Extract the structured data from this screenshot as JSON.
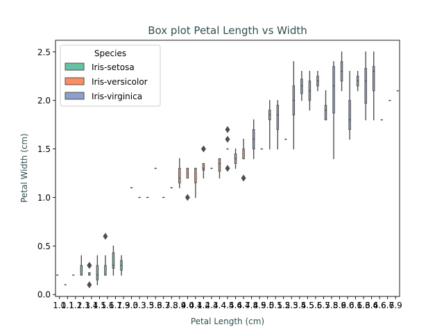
{
  "chart_data": {
    "type": "box",
    "title": "Box plot Petal Length vs Width",
    "xlabel": "Petal Length (cm)",
    "ylabel": "Petal Width (cm)",
    "ylim": [
      -0.02,
      2.62
    ],
    "yticks": [
      0.0,
      0.5,
      1.0,
      1.5,
      2.0,
      2.5
    ],
    "ytick_labels": [
      "0.0",
      "0.5",
      "1.0",
      "1.5",
      "2.0",
      "2.5"
    ],
    "categories": [
      "1.0",
      "1.1",
      "1.2",
      "1.3",
      "1.4",
      "1.5",
      "1.6",
      "1.7",
      "1.9",
      "3.0",
      "3.3",
      "3.5",
      "3.6",
      "3.7",
      "3.8",
      "3.9",
      "4.0",
      "4.1",
      "4.2",
      "4.3",
      "4.4",
      "4.5",
      "4.6",
      "4.7",
      "4.8",
      "4.9",
      "5.0",
      "5.1",
      "5.2",
      "5.3",
      "5.4",
      "5.5",
      "5.6",
      "5.7",
      "5.8",
      "5.9",
      "6.0",
      "6.1",
      "6.3",
      "6.4",
      "6.6",
      "6.7",
      "6.9"
    ],
    "grid": false,
    "legend": {
      "title": "Species",
      "position": "top-left"
    },
    "series": [
      {
        "name": "Iris-setosa",
        "color": "#66c2a5",
        "boxes": [
          {
            "category": "1.0",
            "min": 0.2,
            "q1": 0.2,
            "median": 0.2,
            "q3": 0.2,
            "max": 0.2,
            "outliers": []
          },
          {
            "category": "1.1",
            "min": 0.1,
            "q1": 0.1,
            "median": 0.1,
            "q3": 0.1,
            "max": 0.1,
            "outliers": []
          },
          {
            "category": "1.2",
            "min": 0.2,
            "q1": 0.2,
            "median": 0.2,
            "q3": 0.2,
            "max": 0.2,
            "outliers": []
          },
          {
            "category": "1.3",
            "min": 0.2,
            "q1": 0.2,
            "median": 0.2,
            "q3": 0.3,
            "max": 0.4,
            "outliers": []
          },
          {
            "category": "1.4",
            "min": 0.2,
            "q1": 0.2,
            "median": 0.2,
            "q3": 0.225,
            "max": 0.225,
            "outliers": [
              0.3,
              0.3,
              0.1
            ]
          },
          {
            "category": "1.5",
            "min": 0.1,
            "q1": 0.15,
            "median": 0.2,
            "q3": 0.3,
            "max": 0.4,
            "outliers": []
          },
          {
            "category": "1.6",
            "min": 0.2,
            "q1": 0.2,
            "median": 0.2,
            "q3": 0.3,
            "max": 0.4,
            "outliers": [
              0.6
            ]
          },
          {
            "category": "1.7",
            "min": 0.2,
            "q1": 0.27,
            "median": 0.3,
            "q3": 0.43,
            "max": 0.5,
            "outliers": []
          },
          {
            "category": "1.9",
            "min": 0.2,
            "q1": 0.25,
            "median": 0.3,
            "q3": 0.35,
            "max": 0.4,
            "outliers": []
          }
        ]
      },
      {
        "name": "Iris-versicolor",
        "color": "#fc8d62",
        "boxes": [
          {
            "category": "3.0",
            "min": 1.1,
            "q1": 1.1,
            "median": 1.1,
            "q3": 1.1,
            "max": 1.1,
            "outliers": []
          },
          {
            "category": "3.3",
            "min": 1.0,
            "q1": 1.0,
            "median": 1.0,
            "q3": 1.0,
            "max": 1.0,
            "outliers": []
          },
          {
            "category": "3.5",
            "min": 1.0,
            "q1": 1.0,
            "median": 1.0,
            "q3": 1.0,
            "max": 1.0,
            "outliers": []
          },
          {
            "category": "3.6",
            "min": 1.3,
            "q1": 1.3,
            "median": 1.3,
            "q3": 1.3,
            "max": 1.3,
            "outliers": []
          },
          {
            "category": "3.7",
            "min": 1.0,
            "q1": 1.0,
            "median": 1.0,
            "q3": 1.0,
            "max": 1.0,
            "outliers": []
          },
          {
            "category": "3.8",
            "min": 1.1,
            "q1": 1.1,
            "median": 1.1,
            "q3": 1.1,
            "max": 1.1,
            "outliers": []
          },
          {
            "category": "3.9",
            "min": 1.1,
            "q1": 1.15,
            "median": 1.2,
            "q3": 1.3,
            "max": 1.4,
            "outliers": []
          },
          {
            "category": "4.0",
            "min": 1.2,
            "q1": 1.2,
            "median": 1.3,
            "q3": 1.3,
            "max": 1.3,
            "outliers": [
              1.0
            ]
          },
          {
            "category": "4.1",
            "min": 1.0,
            "q1": 1.15,
            "median": 1.3,
            "q3": 1.3,
            "max": 1.3,
            "outliers": []
          },
          {
            "category": "4.2",
            "min": 1.2,
            "q1": 1.28,
            "median": 1.3,
            "q3": 1.35,
            "max": 1.35,
            "outliers": [
              1.5
            ]
          },
          {
            "category": "4.3",
            "min": 1.3,
            "q1": 1.3,
            "median": 1.3,
            "q3": 1.3,
            "max": 1.3,
            "outliers": []
          },
          {
            "category": "4.4",
            "min": 1.2,
            "q1": 1.27,
            "median": 1.35,
            "q3": 1.4,
            "max": 1.4,
            "outliers": []
          },
          {
            "category": "4.5",
            "min": 1.5,
            "q1": 1.5,
            "median": 1.5,
            "q3": 1.5,
            "max": 1.5,
            "outliers": [
              1.7,
              1.6,
              1.3
            ]
          },
          {
            "category": "4.6",
            "min": 1.3,
            "q1": 1.35,
            "median": 1.4,
            "q3": 1.45,
            "max": 1.5,
            "outliers": []
          },
          {
            "category": "4.7",
            "min": 1.4,
            "q1": 1.4,
            "median": 1.4,
            "q3": 1.5,
            "max": 1.6,
            "outliers": [
              1.2
            ]
          }
        ]
      },
      {
        "name": "Iris-virginica",
        "color": "#8da0cb",
        "boxes": [
          {
            "category": "4.8",
            "min": 1.4,
            "q1": 1.5,
            "median": 1.6,
            "q3": 1.7,
            "max": 1.8,
            "outliers": []
          },
          {
            "category": "4.9",
            "min": 1.5,
            "q1": 1.5,
            "median": 1.5,
            "q3": 1.5,
            "max": 1.5,
            "outliers": []
          },
          {
            "category": "5.0",
            "min": 1.5,
            "q1": 1.8,
            "median": 1.85,
            "q3": 1.9,
            "max": 2.0,
            "outliers": []
          },
          {
            "category": "5.1",
            "min": 1.5,
            "q1": 1.7,
            "median": 1.85,
            "q3": 1.95,
            "max": 2.0,
            "outliers": []
          },
          {
            "category": "5.2",
            "min": 1.6,
            "q1": 1.6,
            "median": 1.6,
            "q3": 1.6,
            "max": 1.6,
            "outliers": []
          },
          {
            "category": "5.3",
            "min": 1.5,
            "q1": 1.85,
            "median": 2.0,
            "q3": 2.15,
            "max": 2.4,
            "outliers": []
          },
          {
            "category": "5.4",
            "min": 2.0,
            "q1": 2.07,
            "median": 2.15,
            "q3": 2.22,
            "max": 2.3,
            "outliers": []
          },
          {
            "category": "5.5",
            "min": 1.9,
            "q1": 2.0,
            "median": 2.1,
            "q3": 2.2,
            "max": 2.3,
            "outliers": []
          },
          {
            "category": "5.6",
            "min": 2.1,
            "q1": 2.15,
            "median": 2.2,
            "q3": 2.25,
            "max": 2.3,
            "outliers": []
          },
          {
            "category": "5.7",
            "min": 1.8,
            "q1": 1.8,
            "median": 1.9,
            "q3": 1.95,
            "max": 2.1,
            "outliers": []
          },
          {
            "category": "5.8",
            "min": 1.4,
            "q1": 1.87,
            "median": 2.15,
            "q3": 2.35,
            "max": 2.4,
            "outliers": []
          },
          {
            "category": "5.9",
            "min": 2.1,
            "q1": 2.2,
            "median": 2.3,
            "q3": 2.4,
            "max": 2.5,
            "outliers": []
          },
          {
            "category": "6.0",
            "min": 1.6,
            "q1": 1.7,
            "median": 1.8,
            "q3": 2.0,
            "max": 2.3,
            "outliers": []
          },
          {
            "category": "6.1",
            "min": 2.1,
            "q1": 2.15,
            "median": 2.2,
            "q3": 2.25,
            "max": 2.3,
            "outliers": []
          },
          {
            "category": "6.3",
            "min": 1.8,
            "q1": 1.97,
            "median": 2.2,
            "q3": 2.33,
            "max": 2.5,
            "outliers": []
          },
          {
            "category": "6.4",
            "min": 1.8,
            "q1": 2.1,
            "median": 2.3,
            "q3": 2.35,
            "max": 2.5,
            "outliers": []
          },
          {
            "category": "6.6",
            "min": 1.8,
            "q1": 1.8,
            "median": 1.8,
            "q3": 1.8,
            "max": 1.8,
            "outliers": []
          },
          {
            "category": "6.7",
            "min": 2.0,
            "q1": 2.0,
            "median": 2.0,
            "q3": 2.0,
            "max": 2.0,
            "outliers": []
          },
          {
            "category": "6.9",
            "min": 2.1,
            "q1": 2.1,
            "median": 2.1,
            "q3": 2.1,
            "max": 2.1,
            "outliers": []
          }
        ]
      }
    ]
  },
  "colors": {
    "axis_text": "#2f4f4f",
    "box_edge": "#4d4d4d"
  }
}
